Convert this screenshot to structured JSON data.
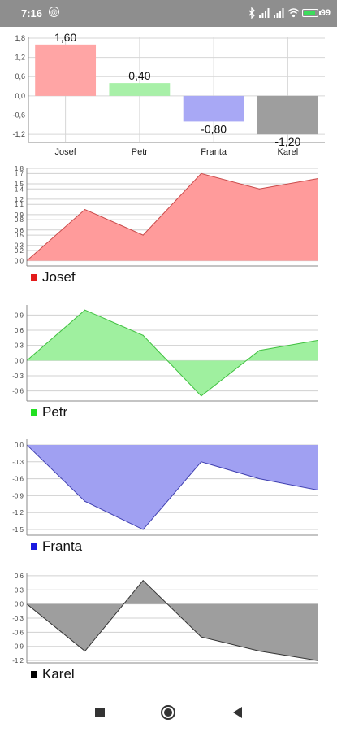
{
  "status_bar": {
    "time": "7:16",
    "notification_icon": "at-icon",
    "battery": "99"
  },
  "chart_data": [
    {
      "type": "bar",
      "categories": [
        "Josef",
        "Petr",
        "Franta",
        "Karel"
      ],
      "values": [
        1.6,
        0.4,
        -0.8,
        -1.2
      ],
      "value_labels": [
        "1,60",
        "0,40",
        "-0,80",
        "-1,20"
      ],
      "colors": [
        "#ffa5a5",
        "#a8f0a8",
        "#a8a8f5",
        "#9e9e9e"
      ],
      "yticks": [
        "1,8",
        "1,2",
        "0,6",
        "0,0",
        "-0,6",
        "-1,2"
      ],
      "ylim": [
        -1.45,
        1.85
      ],
      "grid": true
    },
    {
      "type": "area",
      "x": [
        0,
        1,
        2,
        3,
        4,
        5
      ],
      "values": [
        0,
        1.0,
        0.5,
        1.7,
        1.4,
        1.6
      ],
      "yticks": [
        "1,8",
        "1,7",
        "1,5",
        "1,4",
        "1,2",
        "1,1",
        "0,9",
        "0,8",
        "0,6",
        "0,5",
        "0,3",
        "0,2",
        "0,0"
      ],
      "ylim": [
        -0.1,
        1.8
      ],
      "series_name": "Josef",
      "legend_color": "#e31b1b",
      "fill": "#ff9b9b",
      "line": "#c94a4a",
      "grid": true
    },
    {
      "type": "area",
      "x": [
        0,
        1,
        2,
        3,
        4,
        5
      ],
      "values": [
        0,
        1.0,
        0.5,
        -0.7,
        0.2,
        0.4
      ],
      "yticks": [
        "0,9",
        "0,6",
        "0,3",
        "0,0",
        "-0,3",
        "-0,6"
      ],
      "ylim": [
        -0.8,
        1.1
      ],
      "series_name": "Petr",
      "legend_color": "#22e022",
      "fill": "#9ff09f",
      "line": "#3fc03f",
      "grid": true
    },
    {
      "type": "area",
      "x": [
        0,
        1,
        2,
        3,
        4,
        5
      ],
      "values": [
        0,
        -1.0,
        -1.5,
        -0.3,
        -0.6,
        -0.8
      ],
      "yticks": [
        "0,0",
        "-0,3",
        "-0,6",
        "-0,9",
        "-1,2",
        "-1,5"
      ],
      "ylim": [
        -1.6,
        0.1
      ],
      "series_name": "Franta",
      "legend_color": "#1a1ae0",
      "fill": "#a0a0f2",
      "line": "#4040b0",
      "grid": true
    },
    {
      "type": "area",
      "x": [
        0,
        1,
        2,
        3,
        4,
        5
      ],
      "values": [
        0,
        -1.0,
        0.5,
        -0.7,
        -1.0,
        -1.2
      ],
      "yticks": [
        "0,6",
        "0,3",
        "0,0",
        "-0,3",
        "-0,6",
        "-0,9",
        "-1,2"
      ],
      "ylim": [
        -1.25,
        0.65
      ],
      "series_name": "Karel",
      "legend_color": "#000000",
      "fill": "#9e9e9e",
      "line": "#333333",
      "grid": true
    }
  ],
  "nav_bar": {
    "buttons": [
      "recent-apps",
      "home",
      "back"
    ]
  }
}
